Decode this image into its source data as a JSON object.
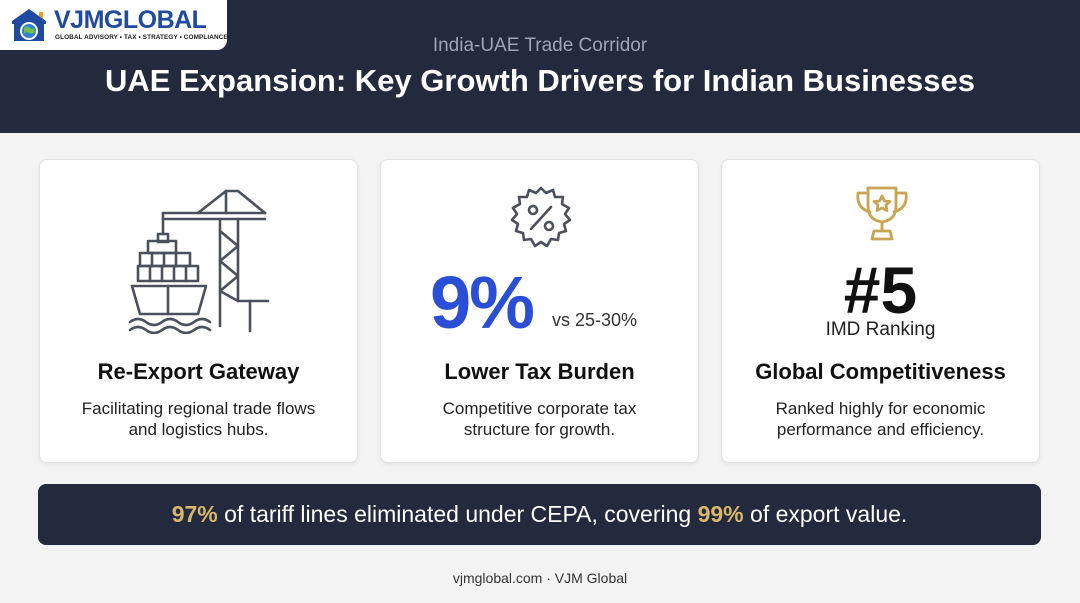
{
  "brand": {
    "name": "VJMGLOBAL",
    "tagline": "GLOBAL ADVISORY • TAX • STRATEGY • COMPLIANCE"
  },
  "header": {
    "subtitle": "India-UAE Trade Corridor",
    "title": "UAE Expansion: Key Growth Drivers for Indian Businesses"
  },
  "cards": [
    {
      "icon": "port-crane-ship-icon",
      "heading": "Re-Export Gateway",
      "desc_lines": [
        "Facilitating regional trade flows",
        "and logistics hubs."
      ]
    },
    {
      "icon": "percent-badge-icon",
      "value": "9%",
      "compare": "vs 25-30%",
      "heading": "Lower Tax Burden",
      "desc_lines": [
        "Competitive corporate tax",
        "structure for growth."
      ]
    },
    {
      "icon": "trophy-icon",
      "value": "#5",
      "caption": "IMD Ranking",
      "heading": "Global Competitiveness",
      "desc_lines": [
        "Ranked highly for economic",
        "performance and efficiency."
      ]
    }
  ],
  "banner": {
    "stat1": "97%",
    "text1": " of tariff lines eliminated under CEPA, covering ",
    "stat2": "99%",
    "text2": " of export value."
  },
  "footer": "vjmglobal.com · VJM Global",
  "colors": {
    "navy": "#232a3d",
    "accent_blue": "#2a4fd6",
    "gold": "#d8b66a",
    "icon_gray": "#4a505c"
  }
}
